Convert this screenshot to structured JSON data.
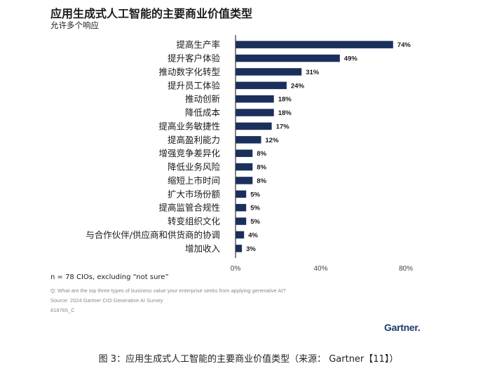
{
  "title": "应用生成式人工智能的主要商业价值类型",
  "subtitle": "允许多个响应",
  "footer": {
    "n_note": "n = 78 CIOs, excluding “not sure”",
    "question": "Q: What are the top three types of business value your enterprise seeks from applying generative AI?",
    "source": "Source: 2024 Gartner CIO Generative AI Survey",
    "id": "818765_C"
  },
  "logo": "Gartner.",
  "caption": "图 3：应用生成式人工智能的主要商业价值类型（来源： Gartner【11】）",
  "colors": {
    "bar": "#1b2f5c",
    "axis": "#333333",
    "text": "#1a1a1a"
  },
  "chart_data": {
    "type": "bar",
    "orientation": "horizontal",
    "categories": [
      "提高生产率",
      "提升客户体验",
      "推动数字化转型",
      "提升员工体验",
      "推动创新",
      "降低成本",
      "提高业务敏捷性",
      "提高盈利能力",
      "增强竞争差异化",
      "降低业务风险",
      "缩短上市时间",
      "扩大市场份额",
      "提高监管合规性",
      "转变组织文化",
      "与合作伙伴/供应商和供货商的协调",
      "增加收入"
    ],
    "values": [
      74,
      49,
      31,
      24,
      18,
      18,
      17,
      12,
      8,
      8,
      8,
      5,
      5,
      5,
      4,
      3
    ],
    "value_labels": [
      "74%",
      "49%",
      "31%",
      "24%",
      "18%",
      "18%",
      "17%",
      "12%",
      "8%",
      "8%",
      "8%",
      "5%",
      "5%",
      "5%",
      "4%",
      "3%"
    ],
    "xlim": [
      0,
      80
    ],
    "xticks": [
      0,
      40,
      80
    ],
    "xtick_labels": [
      "0%",
      "40%",
      "80%"
    ],
    "grid": false
  }
}
